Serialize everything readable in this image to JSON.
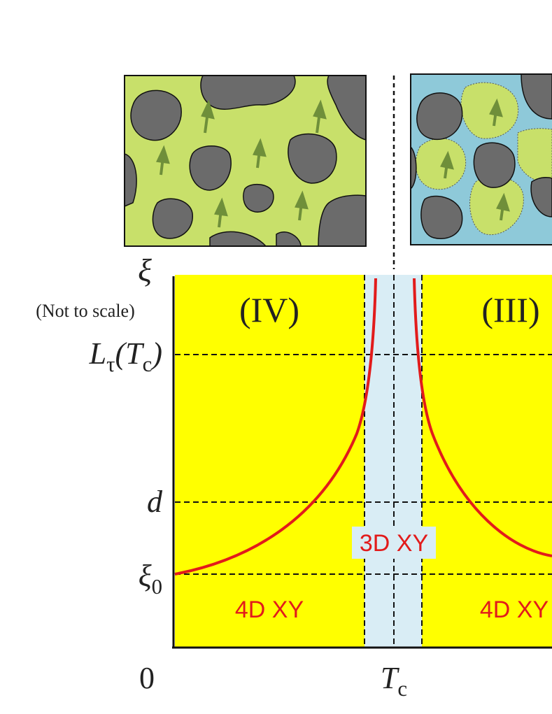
{
  "axis": {
    "y_symbol": "ξ",
    "y_note": "(Not to scale)",
    "origin": "0",
    "y_levels": [
      [
        "L",
        "τ",
        "(T",
        "c",
        ")"
      ],
      [
        "d"
      ],
      [
        "ξ",
        "0"
      ]
    ],
    "x_label": [
      "T",
      "c"
    ]
  },
  "regions": [
    "(IV)",
    "(III)"
  ],
  "phases": [
    "4D XY",
    "3D XY",
    "4D XY"
  ]
}
